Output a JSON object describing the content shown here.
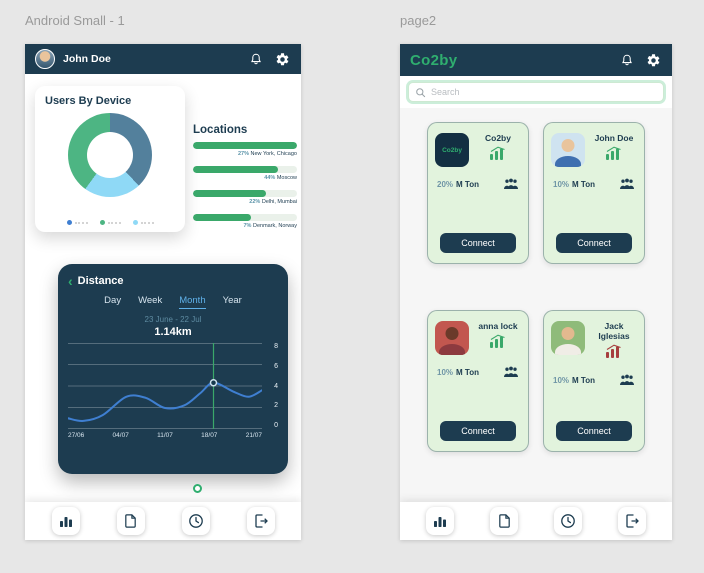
{
  "colors": {
    "navy": "#1d3c50",
    "green": "#2fae6f",
    "card_bg": "#e2f3dd",
    "lightblue": "#5fb0e8",
    "bar_green": "#3aa86a",
    "line_blue": "#3f7fd1",
    "decline_red": "#a63d3d"
  },
  "nav": {
    "items": [
      {
        "icon": "bar-chart-icon"
      },
      {
        "icon": "document-icon"
      },
      {
        "icon": "clock-icon"
      },
      {
        "icon": "logout-icon"
      }
    ]
  },
  "left_frame": {
    "label": "Android Small - 1",
    "header": {
      "user_name": "John Doe",
      "icons": [
        "bell-icon",
        "gear-icon"
      ]
    },
    "device_card": {
      "title": "Users By Device",
      "chart_data": {
        "type": "pie",
        "segments": [
          {
            "name": "segment-blue",
            "color": "#53809c",
            "value": 38
          },
          {
            "name": "segment-lightblue",
            "color": "#8fd9f6",
            "value": 22
          },
          {
            "name": "segment-green",
            "color": "#4db583",
            "value": 40
          }
        ],
        "legend_dots": [
          "#3f7fd1",
          "#4db583",
          "#8fd9f6"
        ]
      }
    },
    "locations": {
      "title": "Locations",
      "bar_color": "#3aa86a",
      "chart_data": {
        "type": "bar",
        "categories": [
          "New York, Chicago",
          "Moscow",
          "Delhi, Mumbai",
          "Denmark, Norway"
        ],
        "values": [
          27,
          44,
          22,
          7
        ]
      },
      "items": [
        {
          "pct": "27%",
          "label": "New York, Chicago",
          "bar_width_pct": 100
        },
        {
          "pct": "44%",
          "label": "Moscow",
          "bar_width_pct": 82
        },
        {
          "pct": "22%",
          "label": "Delhi, Mumbai",
          "bar_width_pct": 70
        },
        {
          "pct": "7%",
          "label": "Denmark, Norway",
          "bar_width_pct": 56
        }
      ]
    },
    "distance_card": {
      "title": "Distance",
      "tabs": [
        {
          "label": "Day",
          "active": false
        },
        {
          "label": "Week",
          "active": false
        },
        {
          "label": "Month",
          "active": true
        },
        {
          "label": "Year",
          "active": false
        }
      ],
      "date_range": "23 June - 22 Jul",
      "value": "1.14km",
      "chart_data": {
        "type": "line",
        "x_labels": [
          "27/06",
          "04/07",
          "11/07",
          "18/07",
          "21/07"
        ],
        "y_ticks": [
          0,
          2,
          4,
          6,
          8
        ],
        "ylim": [
          0,
          8
        ],
        "series": [
          {
            "name": "distance-km",
            "color": "#3f7fd1",
            "points": [
              [
                0,
                1.0
              ],
              [
                0.08,
                0.75
              ],
              [
                0.18,
                1.3
              ],
              [
                0.3,
                3.0
              ],
              [
                0.4,
                2.9
              ],
              [
                0.5,
                1.95
              ],
              [
                0.6,
                2.2
              ],
              [
                0.68,
                3.3
              ],
              [
                0.75,
                4.3
              ],
              [
                0.85,
                3.5
              ],
              [
                0.93,
                3.0
              ],
              [
                1,
                3.6
              ]
            ]
          }
        ],
        "marker": {
          "x": 0.75,
          "y": 4.3,
          "line_color": "#3aa86a"
        }
      }
    }
  },
  "right_frame": {
    "label": "page2",
    "header": {
      "logo": "Co2by",
      "icons": [
        "bell-icon",
        "gear-icon"
      ]
    },
    "search": {
      "placeholder": "Search"
    },
    "cards": [
      {
        "name": "Co2by",
        "avatar": {
          "type": "logo",
          "text": "Co2by"
        },
        "pct": "20%",
        "unit": "M Ton",
        "trend": "up",
        "button": "Connect"
      },
      {
        "name": "John Doe",
        "avatar": {
          "type": "person",
          "bg": "#cfe3f0",
          "head": "#e9c49c",
          "body": "#3f6fb0"
        },
        "pct": "10%",
        "unit": "M Ton",
        "trend": "up",
        "button": "Connect"
      },
      {
        "name": "anna lock",
        "avatar": {
          "type": "person",
          "bg": "#c2574f",
          "head": "#6b3a2a",
          "body": "#8c3a3f"
        },
        "pct": "10%",
        "unit": "M Ton",
        "trend": "up",
        "button": "Connect"
      },
      {
        "name": "Jack Iglesias",
        "avatar": {
          "type": "person",
          "bg": "#8fbb7a",
          "head": "#e3b98f",
          "body": "#f0ede6"
        },
        "pct": "10%",
        "unit": "M Ton",
        "trend": "down",
        "button": "Connect"
      }
    ]
  }
}
